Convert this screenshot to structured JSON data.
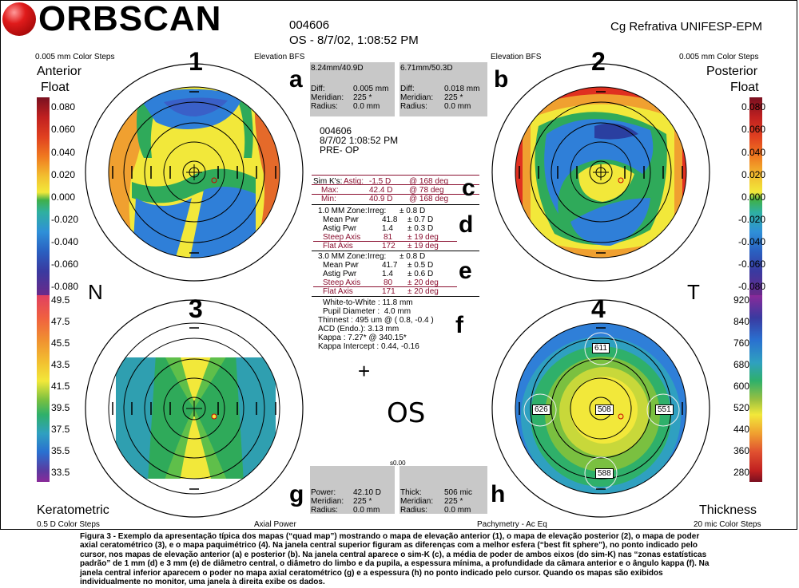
{
  "header": {
    "logo_text": "ORBSCAN",
    "patient_id": "004606",
    "eye_datetime": "OS - 8/7/02, 1:08:52 PM",
    "institution": "Cg Refrativa UNIFESP-EPM"
  },
  "quadrants": {
    "q1": {
      "number": "1",
      "steps": "0.005 mm Color Steps",
      "map_type": "Elevation BFS",
      "title_line1": "Anterior",
      "title_line2": "Float"
    },
    "q2": {
      "number": "2",
      "steps": "0.005 mm Color Steps",
      "map_type": "Elevation BFS",
      "title_line1": "Posterior",
      "title_line2": "Float"
    },
    "q3": {
      "number": "3",
      "steps": "0.5 D Color Steps",
      "map_type": "Axial Power",
      "title": "Keratometric"
    },
    "q4": {
      "number": "4",
      "steps": "20 mic Color Steps",
      "map_type": "Pachymetry - Ac Eq",
      "title": "Thickness"
    }
  },
  "side_labels": {
    "nasal": "N",
    "temporal": "T",
    "center_eye": "OS"
  },
  "letters": {
    "a": "a",
    "b": "b",
    "c": "c",
    "d": "d",
    "e": "e",
    "f": "f",
    "g": "g",
    "h": "h"
  },
  "colorbars": {
    "elevation_left": [
      "0.080",
      "0.060",
      "0.040",
      "0.020",
      "0.000",
      "-0.020",
      "-0.040",
      "-0.060",
      "-0.080"
    ],
    "elevation_right": [
      "0.080",
      "0.060",
      "0.040",
      "0.020",
      "0.000",
      "-0.020",
      "-0.040",
      "-0.060",
      "-0.080"
    ],
    "axial_power": [
      "49.5",
      "47.5",
      "45.5",
      "43.5",
      "41.5",
      "39.5",
      "37.5",
      "35.5",
      "33.5"
    ],
    "thickness": [
      "920",
      "840",
      "760",
      "680",
      "600",
      "520",
      "440",
      "360",
      "280"
    ]
  },
  "panel_a": {
    "title": "8.24mm/40.9D",
    "rows": [
      {
        "label": "Diff:",
        "value": "0.005 mm"
      },
      {
        "label": "Meridian:",
        "value": "225 *"
      },
      {
        "label": "Radius:",
        "value": "0.0 mm"
      }
    ]
  },
  "panel_b": {
    "title": "6.71mm/50.3D",
    "rows": [
      {
        "label": "Diff:",
        "value": "0.018 mm"
      },
      {
        "label": "Meridian:",
        "value": "225 *"
      },
      {
        "label": "Radius:",
        "value": "0.0 mm"
      }
    ]
  },
  "panel_g": {
    "rows": [
      {
        "label": "Power:",
        "value": "42.10 D"
      },
      {
        "label": "Meridian:",
        "value": "225 *"
      },
      {
        "label": "Radius:",
        "value": "0.0 mm"
      }
    ]
  },
  "panel_h": {
    "rows": [
      {
        "label": "Thick:",
        "value": "506 mic"
      },
      {
        "label": "Meridian:",
        "value": "225 *"
      },
      {
        "label": "Radius:",
        "value": "0.0 mm"
      }
    ]
  },
  "panel_gh_small_label": "s0.00",
  "center_info": {
    "id": "004606",
    "datetime": "8/7/02 1:08:52 PM",
    "status": "PRE- OP"
  },
  "simk": {
    "label": "Sim K's:",
    "astig_label": "Astig:",
    "astig_value": "-1.5 D",
    "astig_axis": "@ 168 deg",
    "max_label": "Max:",
    "max_value": "42.4 D",
    "max_axis": "@ 78 deg",
    "min_label": "Min:",
    "min_value": "40.9 D",
    "min_axis": "@ 168 deg"
  },
  "zone1": {
    "title": "1.0 MM Zone:",
    "irreg_label": "Irreg:",
    "irreg_value": "± 0.8 D",
    "rows": [
      {
        "label": "Mean Pwr",
        "value": "41.8",
        "err": "± 0.7 D"
      },
      {
        "label": "Astig Pwr",
        "value": "1.4",
        "err": "± 0.3 D"
      },
      {
        "label": "Steep Axis",
        "value": "81",
        "err": "± 19 deg"
      },
      {
        "label": "Flat Axis",
        "value": "172",
        "err": "± 19 deg"
      }
    ]
  },
  "zone3": {
    "title": "3.0 MM Zone:",
    "irreg_label": "Irreg:",
    "irreg_value": "± 0.8 D",
    "rows": [
      {
        "label": "Mean Pwr",
        "value": "41.7",
        "err": "± 0.5 D"
      },
      {
        "label": "Astig Pwr",
        "value": "1.4",
        "err": "± 0.6 D"
      },
      {
        "label": "Steep Axis",
        "value": "80",
        "err": "± 20 deg"
      },
      {
        "label": "Flat Axis",
        "value": "171",
        "err": "± 20 deg"
      }
    ]
  },
  "misc": [
    "White-to-White : 11.8 mm",
    "Pupil Diameter :  4.0 mm",
    "Thinnest : 495 um @ ( 0.8, -0.4 )",
    "ACD (Endo.): 3.13 mm",
    "Kappa : 7.27* @ 340.15*",
    "Kappa Intercept : 0.44, -0.16"
  ],
  "pachy_points": {
    "top": "611",
    "left": "626",
    "center": "508",
    "right": "551",
    "bottom": "588"
  },
  "caption": "Figura 3 - Exemplo da apresentação típica dos mapas (“quad map”) mostrando o mapa de elevação anterior (1), o mapa de elevação posterior (2), o mapa de poder axial ceratométrico (3), e o mapa paquimétrico (4). Na janela central superior figuram as diferenças com a melhor esfera (“best fit sphere”), no ponto indicado pelo cursor, nos mapas de elevação anterior (a) e posterior (b). Na janela central aparece o sim-K (c), a média de poder de ambos eixos (do sim-K) nas “zonas estatísticas padrão” de 1 mm (d) e 3 mm (e) de diâmetro central, o diâmetro do limbo e da pupila, a espessura mínima, a profundidade da câmara anterior e o ângulo kappa (f). Na janela central inferior aparecem o poder no mapa axial ceratométrico (g) e a espessura (h) no ponto indicado pelo cursor. Quando os mapas são exibidos individualmente no monitor, uma janela à direita exibe os dados.",
  "colors": {
    "blue": "#2f7fd8",
    "green": "#2faa5a",
    "yellow": "#f2e83a",
    "orange": "#f0a030",
    "red": "#e03020",
    "darkblue": "#2a3fa0",
    "purple": "#7a2a8a"
  }
}
